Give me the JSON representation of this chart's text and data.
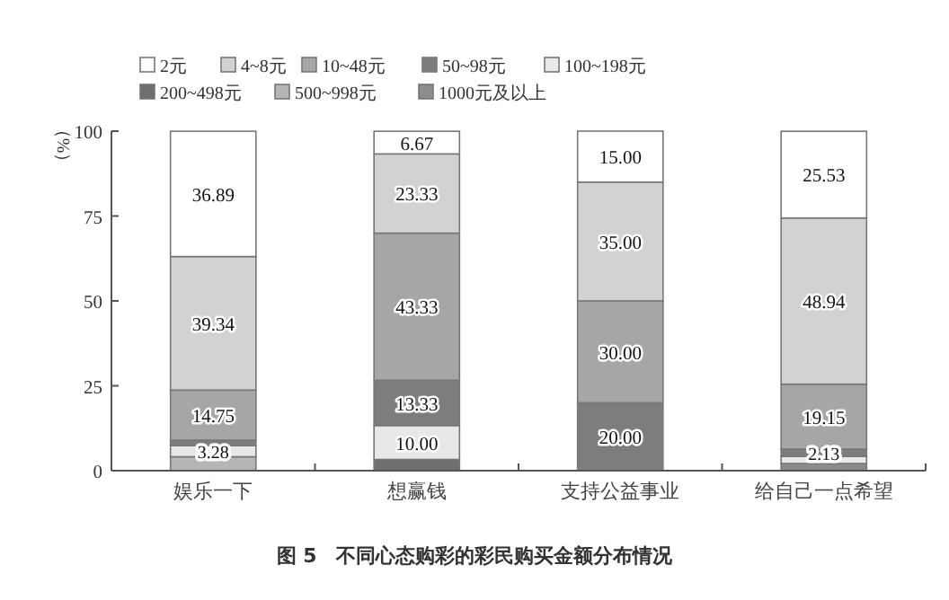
{
  "chart_data": {
    "type": "bar",
    "stacked": true,
    "title": "图 5　不同心态购彩的彩民购买金额分布情况",
    "ylabel": "（%）",
    "categories": [
      "娱乐一下",
      "想赢钱",
      "支持公益事业",
      "给自己一点希望"
    ],
    "ylim": [
      0,
      100
    ],
    "yticks": [
      0,
      25,
      50,
      75,
      100
    ],
    "grid": false,
    "legend": "top",
    "series": [
      {
        "name": "1000元及以上",
        "color": "#8c8c8c",
        "values": [
          null,
          0,
          0,
          2.1
        ],
        "value_labels": [
          null,
          null,
          null,
          null
        ]
      },
      {
        "name": "500~998元",
        "color": "#b5b5b5",
        "values": [
          4.1,
          0,
          0,
          0
        ],
        "value_labels": [
          null,
          null,
          null,
          null
        ]
      },
      {
        "name": "200~498元",
        "color": "#6e6e6e",
        "values": [
          0,
          3.3,
          0,
          0
        ],
        "value_labels": [
          null,
          null,
          null,
          null
        ]
      },
      {
        "name": "100~198元",
        "color": "#e8e8e8",
        "values": [
          3.28,
          10.0,
          0,
          2.1
        ],
        "value_labels": [
          "3.28",
          "10.00",
          null,
          null
        ]
      },
      {
        "name": "50~98元",
        "color": "#7d7d7d",
        "values": [
          1.6,
          13.33,
          20.0,
          2.13
        ],
        "value_labels": [
          null,
          "13.33",
          "20.00",
          "2.13"
        ]
      },
      {
        "name": "10~48元",
        "color": "#a6a6a6",
        "values": [
          14.75,
          43.33,
          30.0,
          19.15
        ],
        "value_labels": [
          "14.75",
          "43.33",
          "30.00",
          "19.15"
        ]
      },
      {
        "name": "4~8元",
        "color": "#d2d2d2",
        "values": [
          39.34,
          23.33,
          35.0,
          48.94
        ],
        "value_labels": [
          "39.34",
          "23.33",
          "35.00",
          "48.94"
        ]
      },
      {
        "name": "2元",
        "color": "#ffffff",
        "values": [
          36.89,
          6.67,
          15.0,
          25.53
        ],
        "value_labels": [
          "36.89",
          "6.67",
          "15.00",
          "25.53"
        ]
      }
    ]
  }
}
